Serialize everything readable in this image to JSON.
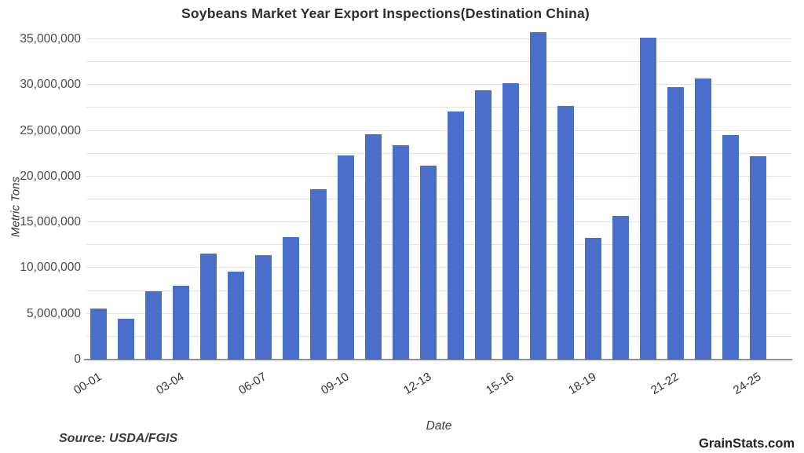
{
  "title": "Soybeans Market Year Export Inspections(Destination China)",
  "footer": {
    "source": "Source: USDA/FGIS",
    "branding": "GrainStats.com"
  },
  "chart_data": {
    "type": "bar",
    "title": "Soybeans Market Year Export Inspections(Destination China)",
    "xlabel": "Date",
    "ylabel": "Metric Tons",
    "categories": [
      "00-01",
      "01-02",
      "02-03",
      "03-04",
      "04-05",
      "05-06",
      "06-07",
      "07-08",
      "08-09",
      "09-10",
      "10-11",
      "11-12",
      "12-13",
      "13-14",
      "14-15",
      "15-16",
      "16-17",
      "17-18",
      "18-19",
      "19-20",
      "20-21",
      "21-22",
      "22-23",
      "23-24",
      "24-25"
    ],
    "values": [
      5600000,
      4500000,
      7500000,
      8100000,
      11600000,
      9600000,
      11400000,
      13400000,
      18600000,
      22300000,
      24600000,
      23400000,
      21200000,
      27100000,
      29400000,
      30200000,
      35800000,
      27700000,
      13300000,
      15700000,
      35200000,
      29800000,
      30700000,
      24500000,
      22200000
    ],
    "x_tick_shown_every": 3,
    "x_tick_labels_shown": [
      "00-01",
      "03-04",
      "06-07",
      "09-10",
      "12-13",
      "15-16",
      "18-19",
      "21-22",
      "24-25"
    ],
    "ylim": [
      0,
      35000000
    ],
    "y_tick_interval": 5000000,
    "y_ticks": [
      0,
      5000000,
      10000000,
      15000000,
      20000000,
      25000000,
      30000000,
      35000000
    ],
    "gridline_interval": 2500000,
    "grid": true,
    "legend": false,
    "bar_color": "#4a6fca",
    "gridline_color": "#e3e3e3",
    "baseline_color": "#8f8f8f"
  }
}
